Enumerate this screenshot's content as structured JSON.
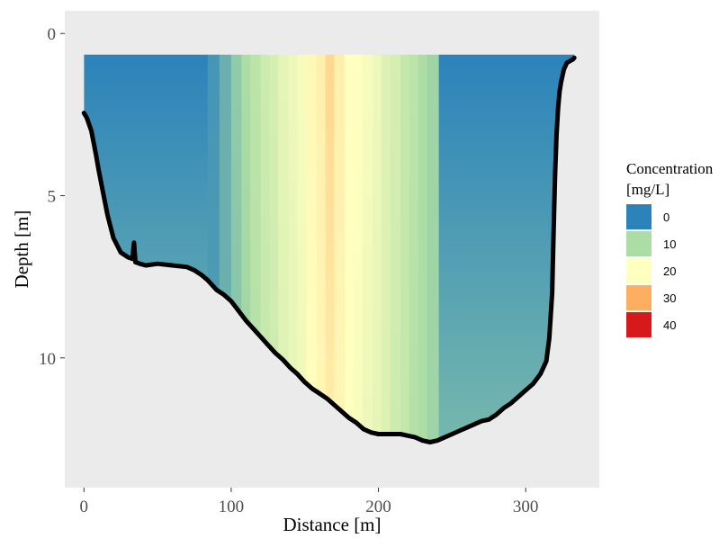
{
  "chart_data": {
    "type": "heatmap",
    "title": "",
    "xlabel": "Distance [m]",
    "ylabel": "Depth [m]",
    "xlim": [
      -13,
      350
    ],
    "ylim": [
      14.0,
      -0.7
    ],
    "x_ticks": [
      0,
      100,
      200,
      300
    ],
    "x_tick_labels": [
      "0",
      "100",
      "200",
      "300"
    ],
    "y_ticks": [
      0,
      5,
      10
    ],
    "y_tick_labels": [
      "0",
      "5",
      "10"
    ],
    "grid": false,
    "panel_background": "#ebebeb",
    "water_surface_depth": 0.65,
    "concentration_columns": {
      "x_edges": [
        0,
        84,
        92,
        100,
        107,
        113,
        120,
        126,
        132,
        139,
        145,
        151,
        158,
        164,
        170,
        177,
        183,
        189,
        196,
        202,
        208,
        215,
        221,
        227,
        233,
        241,
        336
      ],
      "surface_values": [
        0,
        2,
        5,
        8,
        10,
        12,
        14,
        15,
        17,
        18,
        19,
        21,
        22,
        25,
        22,
        20,
        20,
        19,
        18,
        16,
        15,
        13,
        12,
        10,
        9,
        0
      ],
      "bottom_values": [
        0,
        3,
        5,
        7,
        9,
        11,
        13,
        14,
        16,
        17,
        18,
        20,
        21,
        22,
        21,
        20,
        19,
        18,
        17,
        16,
        14,
        13,
        11,
        10,
        9,
        0
      ],
      "wall_depth_gradient": [
        0,
        6
      ]
    },
    "riverbed_profile": {
      "x": [
        0,
        2,
        5,
        8,
        10,
        13,
        16,
        20,
        25,
        30,
        33,
        34,
        35,
        38,
        42,
        50,
        60,
        70,
        75,
        80,
        84,
        90,
        95,
        100,
        105,
        110,
        115,
        120,
        125,
        130,
        135,
        140,
        145,
        150,
        155,
        160,
        165,
        170,
        175,
        180,
        185,
        190,
        195,
        200,
        205,
        210,
        215,
        220,
        225,
        230,
        235,
        240,
        245,
        250,
        255,
        260,
        265,
        270,
        275,
        280,
        285,
        290,
        295,
        300,
        305,
        310,
        314,
        316,
        318,
        319,
        320,
        321,
        322,
        323,
        324,
        325,
        326,
        327,
        328,
        330,
        332,
        333
      ],
      "depth": [
        2.45,
        2.6,
        3.0,
        3.7,
        4.2,
        4.9,
        5.6,
        6.3,
        6.75,
        6.9,
        6.95,
        6.45,
        7.05,
        7.1,
        7.15,
        7.1,
        7.15,
        7.2,
        7.3,
        7.45,
        7.6,
        7.9,
        8.05,
        8.25,
        8.55,
        8.85,
        9.1,
        9.35,
        9.6,
        9.85,
        10.05,
        10.3,
        10.5,
        10.75,
        10.95,
        11.1,
        11.25,
        11.45,
        11.65,
        11.85,
        12.0,
        12.2,
        12.3,
        12.35,
        12.35,
        12.35,
        12.35,
        12.4,
        12.45,
        12.55,
        12.6,
        12.55,
        12.45,
        12.35,
        12.25,
        12.15,
        12.05,
        11.95,
        11.9,
        11.75,
        11.55,
        11.4,
        11.2,
        11.0,
        10.8,
        10.5,
        10.1,
        9.4,
        8.0,
        6.0,
        4.3,
        3.1,
        2.3,
        1.8,
        1.5,
        1.3,
        1.1,
        1.0,
        0.9,
        0.85,
        0.8,
        0.75
      ]
    },
    "legend": {
      "title_lines": [
        "Concentration",
        "[mg/L]"
      ],
      "placement": "right",
      "entries": [
        {
          "label": "0",
          "value": 0,
          "color": "#2b83ba"
        },
        {
          "label": "10",
          "value": 10,
          "color": "#abdda4"
        },
        {
          "label": "20",
          "value": 20,
          "color": "#ffffbf"
        },
        {
          "label": "30",
          "value": 30,
          "color": "#fdae61"
        },
        {
          "label": "40",
          "value": 40,
          "color": "#d7191c"
        }
      ]
    }
  }
}
